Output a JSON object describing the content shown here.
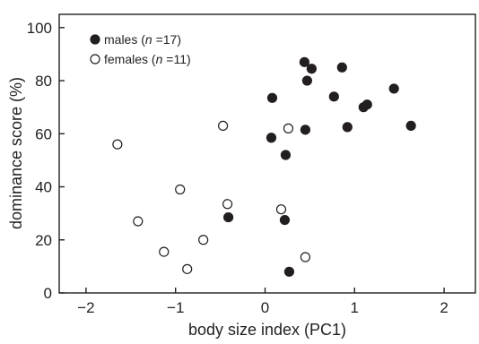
{
  "chart_data": {
    "type": "scatter",
    "xlabel": "body size index (PC1)",
    "ylabel": "dominance score (%)",
    "xlim": [
      -2.3,
      2.35
    ],
    "ylim": [
      0,
      105
    ],
    "xticks": [
      "−2",
      "−1",
      "0",
      "1",
      "2"
    ],
    "yticks": [
      "0",
      "20",
      "40",
      "60",
      "80",
      "100"
    ],
    "xtick_values": [
      -2,
      -1,
      0,
      1,
      2
    ],
    "ytick_values": [
      0,
      20,
      40,
      60,
      80,
      100
    ],
    "grid": false,
    "legend_position": "top-left",
    "series": [
      {
        "name": "males (n =17)",
        "label_parts": [
          "males (",
          "n",
          " =17)"
        ],
        "marker": "filled-circle",
        "color": "#231f20",
        "points": [
          {
            "x": 0.44,
            "y": 87
          },
          {
            "x": 0.52,
            "y": 84.5
          },
          {
            "x": 0.86,
            "y": 85
          },
          {
            "x": 0.47,
            "y": 80
          },
          {
            "x": 1.44,
            "y": 77
          },
          {
            "x": 0.08,
            "y": 73.5
          },
          {
            "x": 0.77,
            "y": 74
          },
          {
            "x": 1.14,
            "y": 71
          },
          {
            "x": 1.1,
            "y": 70
          },
          {
            "x": 0.92,
            "y": 62.5
          },
          {
            "x": 1.63,
            "y": 63
          },
          {
            "x": 0.45,
            "y": 61.5
          },
          {
            "x": 0.07,
            "y": 58.5
          },
          {
            "x": 0.23,
            "y": 52
          },
          {
            "x": -0.41,
            "y": 28.5
          },
          {
            "x": 0.22,
            "y": 27.5
          },
          {
            "x": 0.27,
            "y": 8
          }
        ]
      },
      {
        "name": "females (n =11)",
        "label_parts": [
          "females (",
          "n",
          " =11)"
        ],
        "marker": "open-circle",
        "color": "#231f20",
        "points": [
          {
            "x": -1.65,
            "y": 56
          },
          {
            "x": -0.47,
            "y": 63
          },
          {
            "x": 0.26,
            "y": 62
          },
          {
            "x": -0.95,
            "y": 39
          },
          {
            "x": -0.42,
            "y": 33.5
          },
          {
            "x": 0.18,
            "y": 31.5
          },
          {
            "x": -1.42,
            "y": 27
          },
          {
            "x": -0.69,
            "y": 20
          },
          {
            "x": -1.13,
            "y": 15.5
          },
          {
            "x": -0.87,
            "y": 9
          },
          {
            "x": 0.45,
            "y": 13.5
          }
        ]
      }
    ]
  }
}
